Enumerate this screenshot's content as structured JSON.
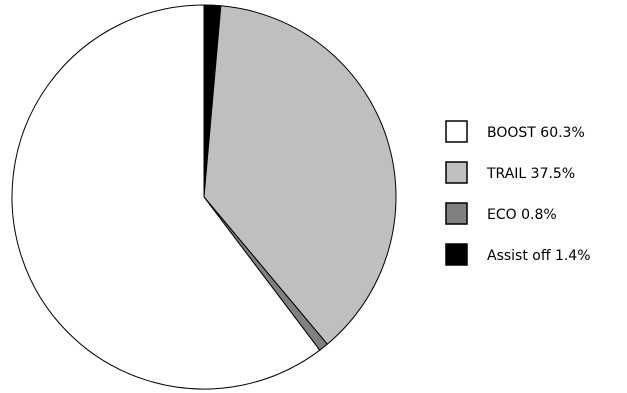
{
  "chart_data": {
    "type": "pie",
    "start_angle_deg": 0,
    "direction": "clockwise",
    "slices": [
      {
        "label": "Assist off",
        "value": 1.4,
        "color": "#000000"
      },
      {
        "label": "TRAIL",
        "value": 37.5,
        "color": "#bfbfbf"
      },
      {
        "label": "ECO",
        "value": 0.8,
        "color": "#808080"
      },
      {
        "label": "BOOST",
        "value": 60.3,
        "color": "#ffffff"
      }
    ],
    "legend": {
      "placement": "right",
      "entries": [
        {
          "text": "BOOST 60.3%",
          "color": "#ffffff"
        },
        {
          "text": "TRAIL 37.5%",
          "color": "#bfbfbf"
        },
        {
          "text": "ECO 0.8%",
          "color": "#808080"
        },
        {
          "text": "Assist off 1.4%",
          "color": "#000000"
        }
      ]
    }
  }
}
